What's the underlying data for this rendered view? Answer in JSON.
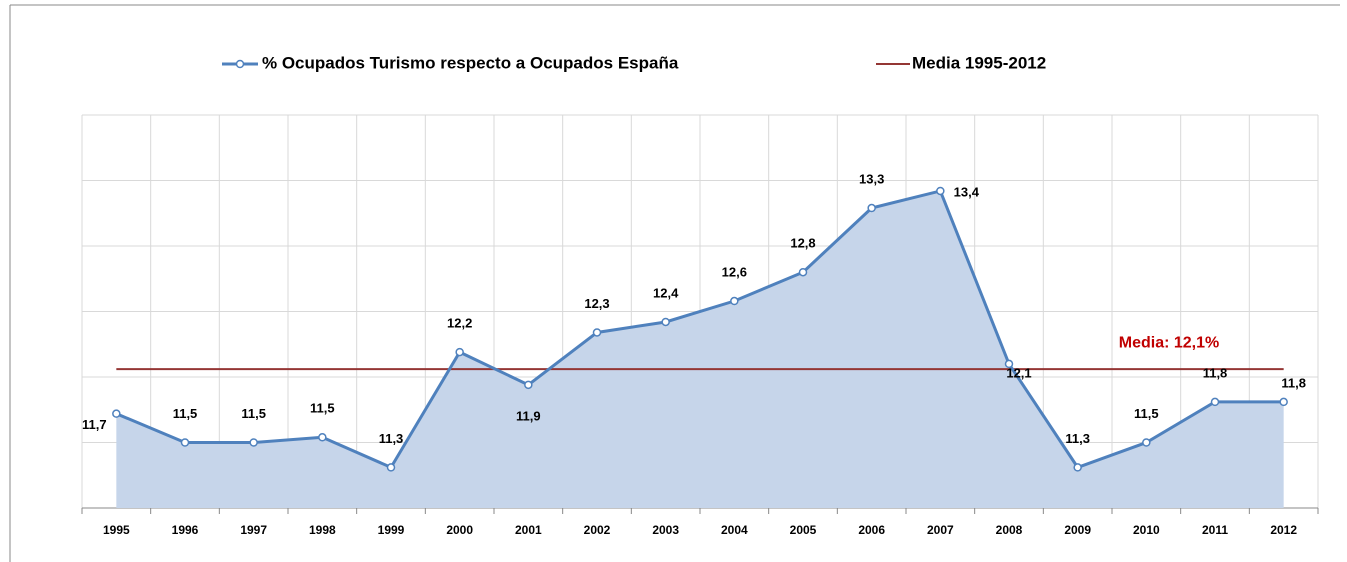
{
  "chart_data": {
    "type": "area-line",
    "categories": [
      "1995",
      "1996",
      "1997",
      "1998",
      "1999",
      "2000",
      "2001",
      "2002",
      "2003",
      "2004",
      "2005",
      "2006",
      "2007",
      "2008",
      "2009",
      "2010",
      "2011",
      "2012"
    ],
    "series": [
      {
        "name": "% Ocupados Turismo respecto a Ocupados España",
        "color": "#4f81bd",
        "fill": "#c6d5ea",
        "values": [
          11.72,
          11.5,
          11.5,
          11.54,
          11.31,
          12.19,
          11.94,
          12.34,
          12.42,
          12.58,
          12.8,
          13.29,
          13.42,
          12.1,
          11.31,
          11.5,
          11.81,
          11.81
        ],
        "value_labels": [
          "11,7",
          "11,5",
          "11,5",
          "11,5",
          "11,3",
          "12,2",
          "11,9",
          "12,3",
          "12,4",
          "12,6",
          "12,8",
          "13,3",
          "13,4",
          "12,1",
          "11,3",
          "11,5",
          "11,8",
          "11,8"
        ]
      }
    ],
    "media": {
      "name": "Media 1995-2012",
      "value": 12.06,
      "color": "#943634",
      "label": "Media: 12,1%",
      "label_color": "#c00000"
    },
    "ylim": [
      11,
      14
    ],
    "yticks": [
      11,
      11.5,
      12,
      12.5,
      13,
      13.5,
      14
    ],
    "grid": true
  }
}
